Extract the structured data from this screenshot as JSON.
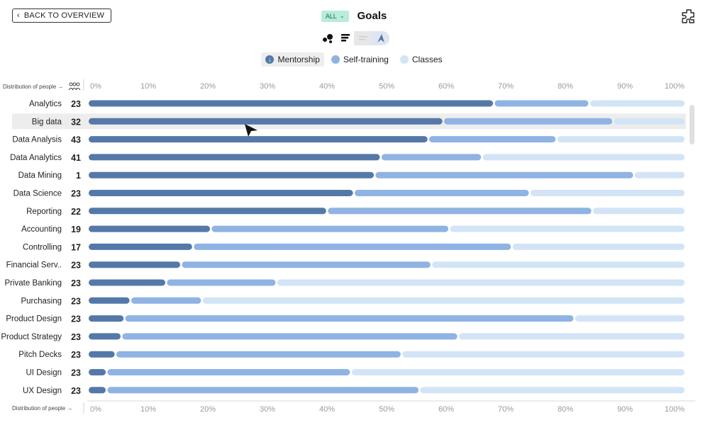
{
  "header": {
    "back_label": "BACK TO OVERVIEW",
    "filter_label": "ALL",
    "title": "Goals"
  },
  "legend": {
    "items": [
      {
        "label": "Mentorship",
        "color": "#5479a8"
      },
      {
        "label": "Self-training",
        "color": "#8fb3e3"
      },
      {
        "label": "Classes",
        "color": "#d4e4f7"
      }
    ]
  },
  "axis": {
    "title": "Distribution of people →"
  },
  "highlighted_row": "Big data",
  "chart_data": {
    "type": "bar",
    "orientation": "horizontal",
    "stacked": "percent",
    "xlim": [
      0,
      100
    ],
    "tick_labels": [
      "0%",
      "10%",
      "20%",
      "30%",
      "40%",
      "50%",
      "60%",
      "70%",
      "80%",
      "90%",
      "100%"
    ],
    "categories": [
      "Analytics",
      "Big data",
      "Data Analysis",
      "Data Analytics",
      "Data Mining",
      "Data Science",
      "Reporting",
      "Accounting",
      "Controlling",
      "Financial Serv..",
      "Private Banking",
      "Purchasing",
      "Product Design",
      "Product Strategy",
      "Pitch Decks",
      "UI Design",
      "UX Design"
    ],
    "counts": [
      23,
      32,
      43,
      41,
      1,
      23,
      22,
      19,
      17,
      23,
      23,
      23,
      23,
      23,
      23,
      23,
      23
    ],
    "series": [
      {
        "name": "Mentorship",
        "values": [
          68,
          59.5,
          57,
          49,
          48,
          44.5,
          40,
          20.5,
          17.5,
          15.5,
          13,
          7,
          6,
          5.5,
          4.5,
          3,
          3
        ]
      },
      {
        "name": "Self-training",
        "values": [
          16,
          28.5,
          21.5,
          17,
          43.5,
          29.5,
          44.5,
          40,
          53.5,
          42,
          18.5,
          12,
          75.5,
          56.5,
          48,
          41,
          52.5
        ]
      },
      {
        "name": "Classes",
        "values": [
          16,
          12,
          21.5,
          34,
          8.5,
          26,
          15.5,
          39.5,
          29,
          42.5,
          68.5,
          81,
          18.5,
          38,
          47.5,
          56,
          44.5
        ]
      }
    ],
    "grid": false,
    "legend_position": "top-center"
  }
}
